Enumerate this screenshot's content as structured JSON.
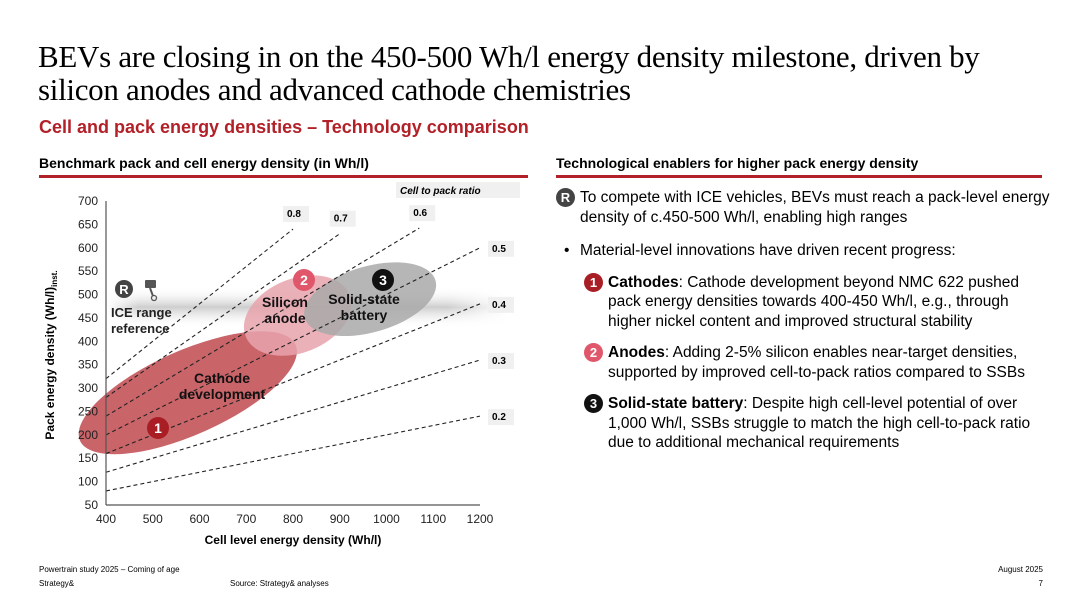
{
  "header": {
    "title": "BEVs are closing in on the 450-500 Wh/l energy density milestone, driven by silicon anodes and advanced cathode chemistries",
    "subtitle": "Cell and pack energy densities – Technology comparison"
  },
  "left_section": {
    "heading": "Benchmark pack and cell energy density (in Wh/l)"
  },
  "right_section": {
    "heading": "Technological enablers for higher pack energy density",
    "intro_badge": "R",
    "intro": "To compete with ICE vehicles, BEVs must reach a pack-level energy density of c.450-500 Wh/l, enabling high ranges",
    "bullet": "Material-level innovations have driven recent progress:",
    "items": [
      {
        "badge": "1",
        "bold": "Cathodes",
        "text": ": Cathode development beyond NMC 622 pushed pack energy densities towards 400-450 Wh/l, e.g., through higher nickel content and improved structural stability",
        "color": "#a91e25"
      },
      {
        "badge": "2",
        "bold": "Anodes",
        "text": ": Adding 2-5% silicon enables near-target densities, supported by improved cell-to-pack ratios compared to SSBs",
        "color": "#e0566a"
      },
      {
        "badge": "3",
        "bold": "Solid-state battery",
        "text": ": Despite high cell-level potential of over 1,000 Wh/l, SSBs struggle to match the high cell-to-pack ratio due to additional mechanical requirements",
        "color": "#111111"
      }
    ]
  },
  "chart_data": {
    "type": "scatter",
    "title": "Benchmark pack and cell energy density (in Wh/l)",
    "xlabel": "Cell level energy density (Wh/l)",
    "ylabel": "Pack energy density (Wh/l)",
    "ylabel_sub": "inst.",
    "xlim": [
      400,
      1200
    ],
    "ylim": [
      50,
      700
    ],
    "xticks": [
      400,
      500,
      600,
      700,
      800,
      900,
      1000,
      1100,
      1200
    ],
    "yticks": [
      50,
      100,
      150,
      200,
      250,
      300,
      350,
      400,
      450,
      500,
      550,
      600,
      650,
      700
    ],
    "ratio_legend_title": "Cell to pack ratio",
    "ratio_lines": [
      {
        "ratio": 0.8,
        "label": "0.8",
        "x_end": 800
      },
      {
        "ratio": 0.7,
        "label": "0.7",
        "x_end": 900
      },
      {
        "ratio": 0.6,
        "label": "0.6",
        "x_end": 1070
      },
      {
        "ratio": 0.5,
        "label": "0.5",
        "x_end": 1200
      },
      {
        "ratio": 0.4,
        "label": "0.4",
        "x_end": 1200
      },
      {
        "ratio": 0.3,
        "label": "0.3",
        "x_end": 1200
      },
      {
        "ratio": 0.2,
        "label": "0.2",
        "x_end": 1200
      }
    ],
    "reference_band": {
      "label": "ICE range reference",
      "badge": "R",
      "y_range": [
        450,
        500
      ]
    },
    "regions": [
      {
        "id": 1,
        "label": "Cathode development",
        "cx": 600,
        "cy": 290,
        "color": "#c0494f",
        "badge_color": "#a91e25"
      },
      {
        "id": 2,
        "label": "Silicon anode",
        "cx": 800,
        "cy": 465,
        "color": "#e8a3ad",
        "badge_color": "#e0566a"
      },
      {
        "id": 3,
        "label": "Solid-state battery",
        "cx": 970,
        "cy": 485,
        "color": "#a9a9a9",
        "badge_color": "#111111"
      }
    ]
  },
  "footer": {
    "study": "Powertrain study 2025 – Coming of age",
    "brand": "Strategy&",
    "source": "Source: Strategy& analyses",
    "date": "August 2025",
    "page": "7"
  }
}
